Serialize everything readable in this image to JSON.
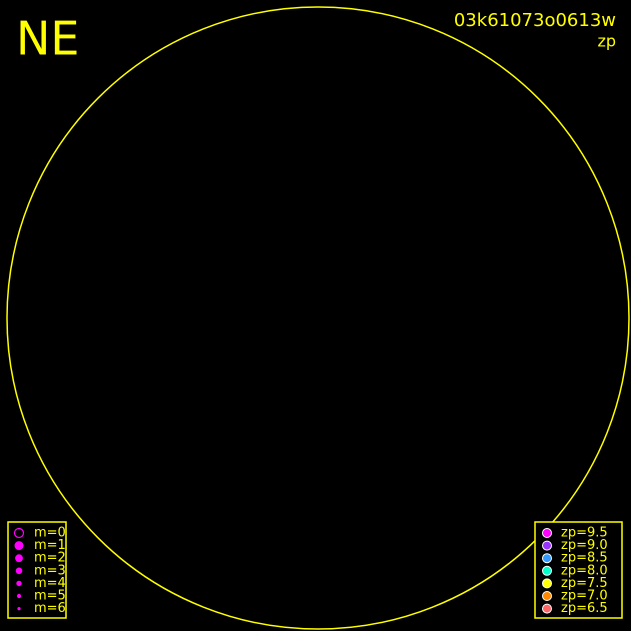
{
  "corner_label": "NE",
  "image_id": "03k61073o0613w",
  "color_key_label": "zp",
  "magnitude_legend": {
    "entries": [
      "m=0",
      "m=1",
      "m=2",
      "m=3",
      "m=4",
      "m=5",
      "m=6"
    ],
    "color": "#ff00ff"
  },
  "zp_legend": {
    "entries": [
      "zp=9.5",
      "zp=9.0",
      "zp=8.5",
      "zp=8.0",
      "zp=7.5",
      "zp=7.0",
      "zp=6.5"
    ],
    "colors": [
      "#ff00ff",
      "#9933ff",
      "#3399ff",
      "#00ffcc",
      "#ffff00",
      "#ff8800",
      "#ff6666"
    ]
  }
}
